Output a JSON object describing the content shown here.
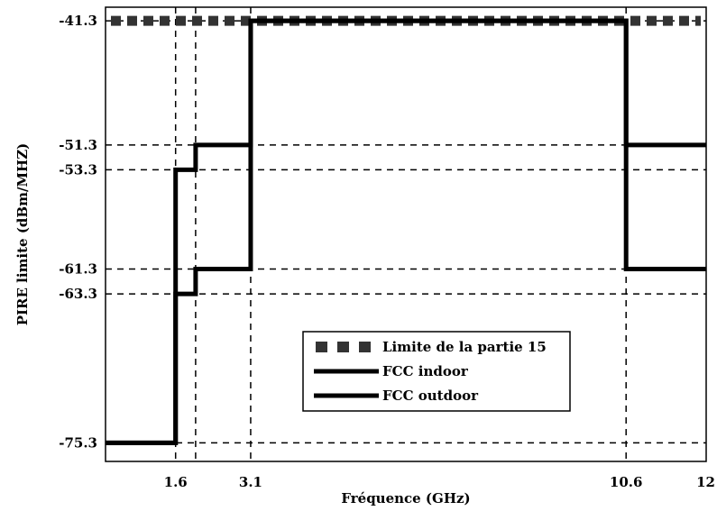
{
  "chart_data": {
    "type": "line",
    "xlabel": "Fréquence (GHz)",
    "ylabel": "PIRE limite (dBm/MHZ)",
    "x_ticks": [
      {
        "label": "1.6",
        "value": 1.6
      },
      {
        "label": "3.1",
        "value": 3.1
      },
      {
        "label": "10.6",
        "value": 10.6
      },
      {
        "label": "12",
        "value": 12
      }
    ],
    "y_ticks": [
      {
        "label": "-41.3",
        "value": -41.3
      },
      {
        "label": "-51.3",
        "value": -51.3
      },
      {
        "label": "-53.3",
        "value": -53.3
      },
      {
        "label": "-61.3",
        "value": -61.3
      },
      {
        "label": "-63.3",
        "value": -63.3
      },
      {
        "label": "-75.3",
        "value": -75.3
      }
    ],
    "xlim": [
      0.2,
      12.2
    ],
    "ylim": [
      -76.8,
      -40.2
    ],
    "grid": "dashed at tick values",
    "legend_position": "bottom-center",
    "series": [
      {
        "name": "Limite de la partie 15",
        "style": "dotted-square",
        "x": [
          0.2,
          12.2
        ],
        "y": [
          -41.3,
          -41.3
        ]
      },
      {
        "name": "FCC indoor",
        "style": "solid",
        "x": [
          0.2,
          1.6,
          1.6,
          2.0,
          2.0,
          3.1,
          3.1,
          10.6,
          10.6,
          12.2
        ],
        "y": [
          -75.3,
          -75.3,
          -53.3,
          -53.3,
          -51.3,
          -51.3,
          -41.3,
          -41.3,
          -51.3,
          -51.3
        ]
      },
      {
        "name": "FCC outdoor",
        "style": "solid",
        "x": [
          0.2,
          1.6,
          1.6,
          2.0,
          2.0,
          3.1,
          3.1,
          10.6,
          10.6,
          12.2
        ],
        "y": [
          -75.3,
          -75.3,
          -63.3,
          -63.3,
          -61.3,
          -61.3,
          -41.3,
          -41.3,
          -61.3,
          -61.3
        ]
      }
    ],
    "colors": {
      "line": "#000000",
      "marker": "#333333"
    }
  }
}
